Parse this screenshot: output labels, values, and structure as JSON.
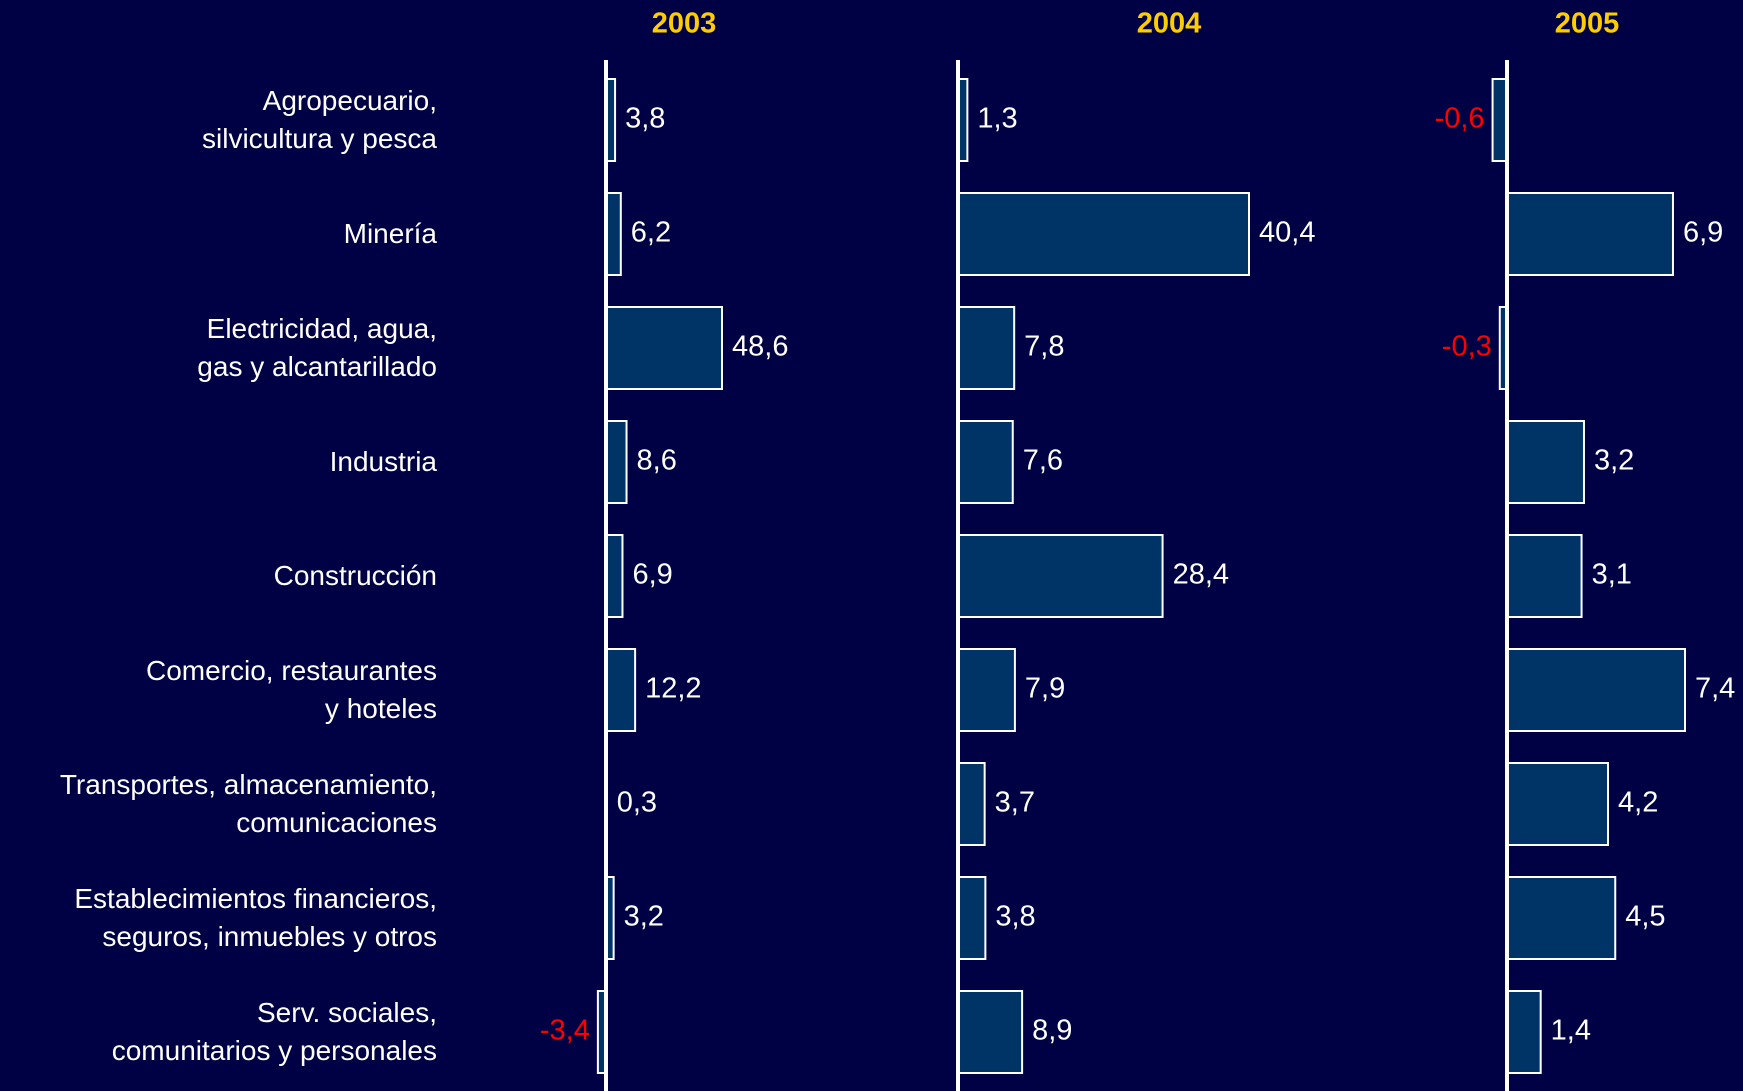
{
  "chart_data": {
    "type": "bar",
    "orientation": "horizontal",
    "categories": [
      "Agropecuario,\nsilvicultura y pesca",
      "Minería",
      "Electricidad, agua,\ngas y alcantarillado",
      "Industria",
      "Construcción",
      "Comercio, restaurantes\ny hoteles",
      "Transportes, almacenamiento,\ncomunicaciones",
      "Establecimientos financieros,\nseguros, inmuebles y otros",
      "Serv. sociales,\ncomunitarios y personales"
    ],
    "series": [
      {
        "name": "2003",
        "color": "#003366",
        "values": [
          3.8,
          6.2,
          48.6,
          8.6,
          6.9,
          12.2,
          0.3,
          3.2,
          -3.4
        ],
        "value_labels": [
          "3,8",
          "6,2",
          "48,6",
          "8,6",
          "6,9",
          "12,2",
          "0,3",
          "3,2",
          "-3,4"
        ]
      },
      {
        "name": "2004",
        "color": "#003366",
        "values": [
          1.3,
          40.4,
          7.8,
          7.6,
          28.4,
          7.9,
          3.7,
          3.8,
          8.9
        ],
        "value_labels": [
          "1,3",
          "40,4",
          "7,8",
          "7,6",
          "28,4",
          "7,9",
          "3,7",
          "3,8",
          "8,9"
        ]
      },
      {
        "name": "2005",
        "color": "#003366",
        "values": [
          -0.6,
          6.9,
          -0.3,
          3.2,
          3.1,
          7.4,
          4.2,
          4.5,
          1.4
        ],
        "value_labels": [
          "-0,6",
          "6,9",
          "-0,3",
          "3,2",
          "3,1",
          "7,4",
          "4,2",
          "4,5",
          "1,4"
        ]
      }
    ],
    "title_color": "#ffcc00",
    "label_color": "#ffffff",
    "negative_label_color": "#ff0000"
  }
}
